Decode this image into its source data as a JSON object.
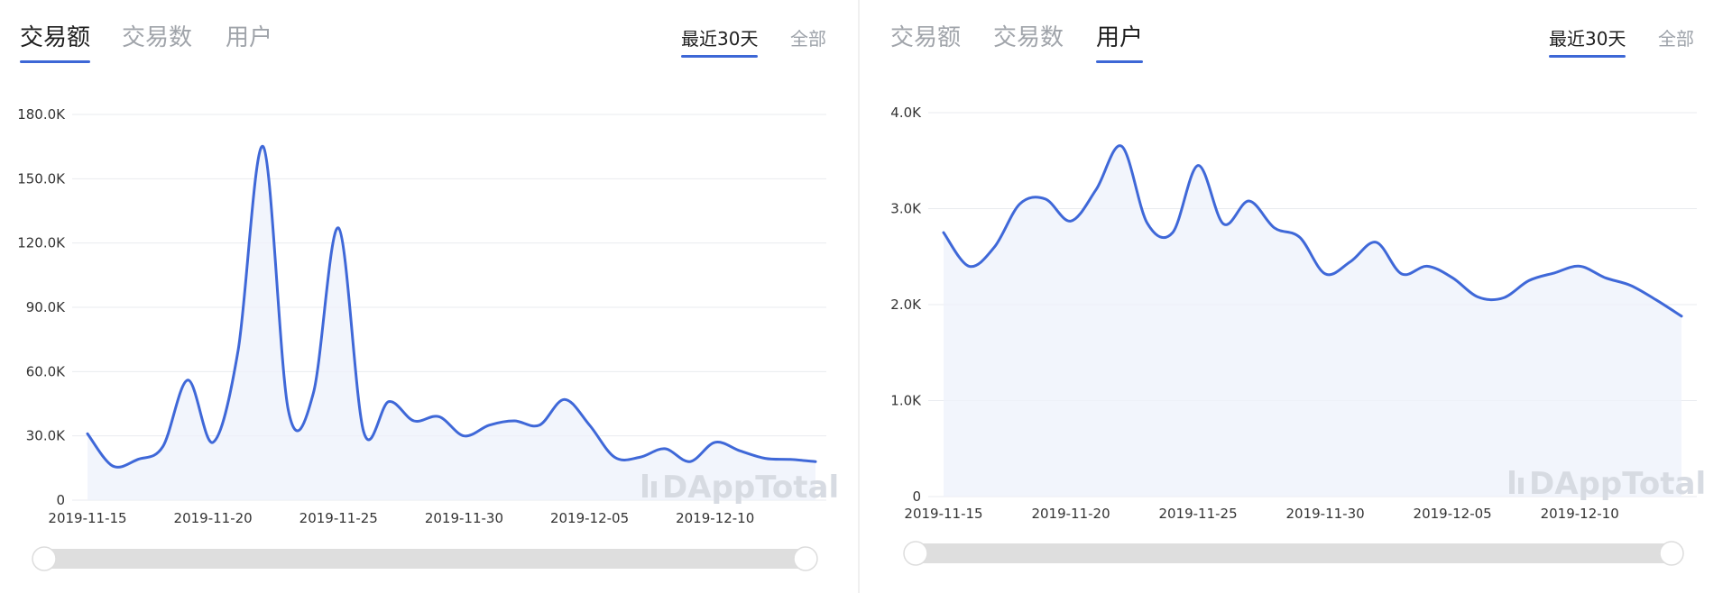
{
  "panels": [
    {
      "tabs": [
        "交易额",
        "交易数",
        "用户"
      ],
      "active_tab": 0,
      "ranges": [
        "最近30天",
        "全部"
      ],
      "active_range": 0,
      "watermark": "DAppTotal"
    },
    {
      "tabs": [
        "交易额",
        "交易数",
        "用户"
      ],
      "active_tab": 2,
      "ranges": [
        "最近30天",
        "全部"
      ],
      "active_range": 0,
      "watermark": "DAppTotal"
    }
  ],
  "colors": {
    "accent": "#3d67d6",
    "line": "#3f68d8",
    "area": "#eef1fb"
  },
  "chart_data": [
    {
      "type": "area",
      "x_labels": [
        "2019-11-15",
        "2019-11-20",
        "2019-11-25",
        "2019-11-30",
        "2019-12-05",
        "2019-12-10"
      ],
      "x_start": "2019-11-15",
      "x_end": "2019-12-14",
      "y_ticks": [
        "0",
        "30.0K",
        "60.0K",
        "90.0K",
        "120.0K",
        "150.0K",
        "180.0K"
      ],
      "ylim": [
        0,
        180000
      ],
      "series": [
        {
          "points": [
            [
              "2019-11-15",
              31000
            ],
            [
              "2019-11-16",
              16000
            ],
            [
              "2019-11-17",
              19000
            ],
            [
              "2019-11-18",
              25000
            ],
            [
              "2019-11-19",
              56000
            ],
            [
              "2019-11-20",
              27000
            ],
            [
              "2019-11-21",
              70000
            ],
            [
              "2019-11-22",
              165000
            ],
            [
              "2019-11-23",
              42000
            ],
            [
              "2019-11-24",
              50000
            ],
            [
              "2019-11-25",
              127000
            ],
            [
              "2019-11-26",
              32000
            ],
            [
              "2019-11-27",
              46000
            ],
            [
              "2019-11-28",
              37000
            ],
            [
              "2019-11-29",
              39000
            ],
            [
              "2019-11-30",
              30000
            ],
            [
              "2019-12-01",
              35000
            ],
            [
              "2019-12-02",
              37000
            ],
            [
              "2019-12-03",
              35000
            ],
            [
              "2019-12-04",
              47000
            ],
            [
              "2019-12-05",
              35000
            ],
            [
              "2019-12-06",
              20000
            ],
            [
              "2019-12-07",
              20000
            ],
            [
              "2019-12-08",
              24000
            ],
            [
              "2019-12-09",
              18000
            ],
            [
              "2019-12-10",
              27000
            ],
            [
              "2019-12-11",
              23000
            ],
            [
              "2019-12-12",
              19500
            ],
            [
              "2019-12-13",
              19000
            ],
            [
              "2019-12-14",
              18000
            ]
          ]
        }
      ],
      "grid": true,
      "watermark": "DAppTotal"
    },
    {
      "type": "area",
      "x_labels": [
        "2019-11-15",
        "2019-11-20",
        "2019-11-25",
        "2019-11-30",
        "2019-12-05",
        "2019-12-10"
      ],
      "x_start": "2019-11-15",
      "x_end": "2019-12-14",
      "y_ticks": [
        "0",
        "1.0K",
        "2.0K",
        "3.0K",
        "4.0K"
      ],
      "ylim": [
        0,
        4000
      ],
      "series": [
        {
          "points": [
            [
              "2019-11-15",
              2750
            ],
            [
              "2019-11-16",
              2400
            ],
            [
              "2019-11-17",
              2600
            ],
            [
              "2019-11-18",
              3050
            ],
            [
              "2019-11-19",
              3100
            ],
            [
              "2019-11-20",
              2870
            ],
            [
              "2019-11-21",
              3200
            ],
            [
              "2019-11-22",
              3650
            ],
            [
              "2019-11-23",
              2850
            ],
            [
              "2019-11-24",
              2750
            ],
            [
              "2019-11-25",
              3450
            ],
            [
              "2019-11-26",
              2840
            ],
            [
              "2019-11-27",
              3080
            ],
            [
              "2019-11-28",
              2800
            ],
            [
              "2019-11-29",
              2700
            ],
            [
              "2019-11-30",
              2320
            ],
            [
              "2019-12-01",
              2450
            ],
            [
              "2019-12-02",
              2650
            ],
            [
              "2019-12-03",
              2320
            ],
            [
              "2019-12-04",
              2400
            ],
            [
              "2019-12-05",
              2280
            ],
            [
              "2019-12-06",
              2080
            ],
            [
              "2019-12-07",
              2070
            ],
            [
              "2019-12-08",
              2250
            ],
            [
              "2019-12-09",
              2330
            ],
            [
              "2019-12-10",
              2400
            ],
            [
              "2019-12-11",
              2280
            ],
            [
              "2019-12-12",
              2200
            ],
            [
              "2019-12-13",
              2050
            ],
            [
              "2019-12-14",
              1880
            ]
          ]
        }
      ],
      "grid": true,
      "watermark": "DAppTotal"
    }
  ]
}
